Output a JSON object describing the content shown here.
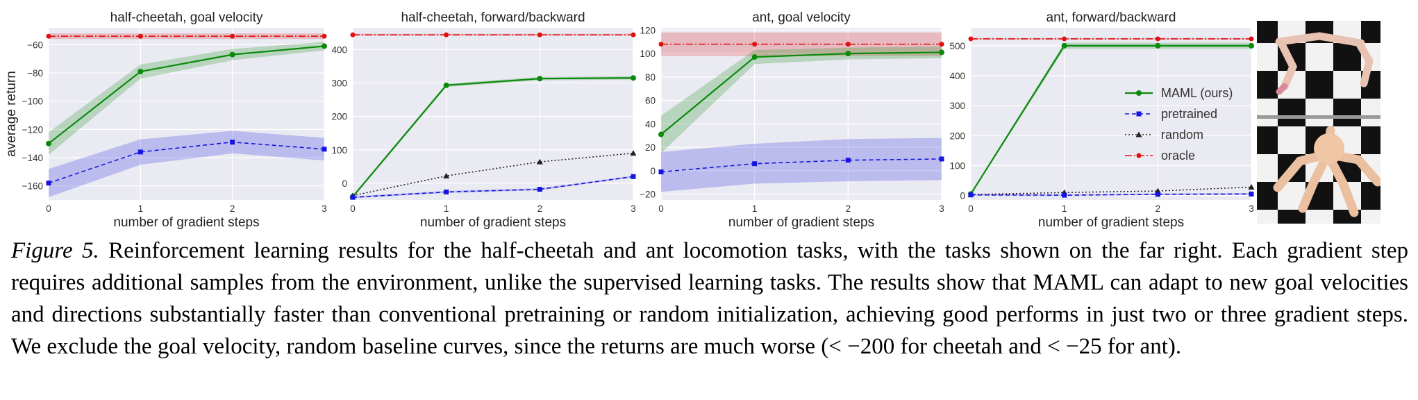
{
  "figure": {
    "caption_label": "Figure 5.",
    "caption_text": " Reinforcement learning results for the half-cheetah and ant locomotion tasks, with the tasks shown on the far right.  Each gradient step requires additional samples from the environment, unlike the supervised learning tasks. The results show that MAML can adapt to new goal velocities and directions substantially faster than conventional pretraining or random initialization, achieving good performs in just two or three gradient steps.  We exclude the goal velocity, random baseline curves, since the returns are much worse (< −200 for cheetah and < −25 for ant).",
    "tasks_image": "half-cheetah and ant robots on checkerboard floor"
  },
  "colors": {
    "panel_bg": "#eaeaf2",
    "grid": "#ffffff",
    "maml": "#0a8a0a",
    "pretrained": "#1515e0",
    "random": "#222222",
    "oracle": "#e01010"
  },
  "legend": [
    {
      "name": "MAML (ours)",
      "key": "maml"
    },
    {
      "name": "pretrained",
      "key": "pretrained"
    },
    {
      "name": "random",
      "key": "random"
    },
    {
      "name": "oracle",
      "key": "oracle"
    }
  ],
  "chart_data": [
    {
      "type": "line",
      "title": "half-cheetah, goal velocity",
      "xlabel": "number of gradient steps",
      "ylabel": "average return",
      "x": [
        0,
        1,
        2,
        3
      ],
      "xlim": [
        0,
        3
      ],
      "ylim": [
        -170,
        -48
      ],
      "yticks": [
        -160,
        -140,
        -120,
        -100,
        -80,
        -60
      ],
      "series": [
        {
          "name": "oracle",
          "values": [
            -54,
            -54,
            -54,
            -54
          ],
          "band": [
            2,
            2,
            2,
            2
          ]
        },
        {
          "name": "MAML (ours)",
          "values": [
            -130,
            -79,
            -67,
            -61
          ],
          "band": [
            8,
            5,
            4,
            3
          ]
        },
        {
          "name": "pretrained",
          "values": [
            -158,
            -136,
            -129,
            -134
          ],
          "band": [
            10,
            9,
            8,
            8
          ]
        }
      ]
    },
    {
      "type": "line",
      "title": "half-cheetah, forward/backward",
      "xlabel": "number of gradient steps",
      "ylabel": "",
      "x": [
        0,
        1,
        2,
        3
      ],
      "xlim": [
        0,
        3
      ],
      "ylim": [
        -50,
        465
      ],
      "yticks": [
        0,
        100,
        200,
        300,
        400
      ],
      "series": [
        {
          "name": "oracle",
          "values": [
            444,
            444,
            444,
            444
          ],
          "band": [
            3,
            3,
            3,
            3
          ]
        },
        {
          "name": "MAML (ours)",
          "values": [
            -40,
            293,
            313,
            315
          ],
          "band": [
            4,
            5,
            5,
            5
          ]
        },
        {
          "name": "random",
          "values": [
            -37,
            22,
            64,
            90
          ],
          "band": [
            0,
            0,
            0,
            0
          ]
        },
        {
          "name": "pretrained",
          "values": [
            -42,
            -26,
            -18,
            20
          ],
          "band": [
            3,
            3,
            3,
            3
          ]
        }
      ]
    },
    {
      "type": "line",
      "title": "ant, goal velocity",
      "xlabel": "number of gradient steps",
      "ylabel": "",
      "x": [
        0,
        1,
        2,
        3
      ],
      "xlim": [
        0,
        3
      ],
      "ylim": [
        -25,
        122
      ],
      "yticks": [
        -20,
        0,
        20,
        40,
        60,
        80,
        100,
        120
      ],
      "series": [
        {
          "name": "oracle",
          "values": [
            108,
            108,
            108,
            108
          ],
          "band": [
            10,
            10,
            10,
            10
          ]
        },
        {
          "name": "MAML (ours)",
          "values": [
            31,
            97,
            100,
            101
          ],
          "band": [
            16,
            6,
            5,
            5
          ]
        },
        {
          "name": "pretrained",
          "values": [
            -1,
            6,
            9,
            10
          ],
          "band": [
            17,
            17,
            18,
            18
          ]
        }
      ]
    },
    {
      "type": "line",
      "title": "ant, forward/backward",
      "xlabel": "number of gradient steps",
      "ylabel": "",
      "x": [
        0,
        1,
        2,
        3
      ],
      "xlim": [
        0,
        3
      ],
      "ylim": [
        -15,
        560
      ],
      "yticks": [
        0,
        100,
        200,
        300,
        400,
        500
      ],
      "series": [
        {
          "name": "oracle",
          "values": [
            523,
            523,
            523,
            523
          ],
          "band": [
            3,
            3,
            3,
            3
          ]
        },
        {
          "name": "MAML (ours)",
          "values": [
            5,
            500,
            500,
            500
          ],
          "band": [
            3,
            10,
            10,
            10
          ]
        },
        {
          "name": "random",
          "values": [
            3,
            10,
            15,
            28
          ],
          "band": [
            0,
            0,
            0,
            0
          ]
        },
        {
          "name": "pretrained",
          "values": [
            2,
            1,
            4,
            5
          ],
          "band": [
            3,
            3,
            3,
            3
          ]
        }
      ]
    }
  ]
}
